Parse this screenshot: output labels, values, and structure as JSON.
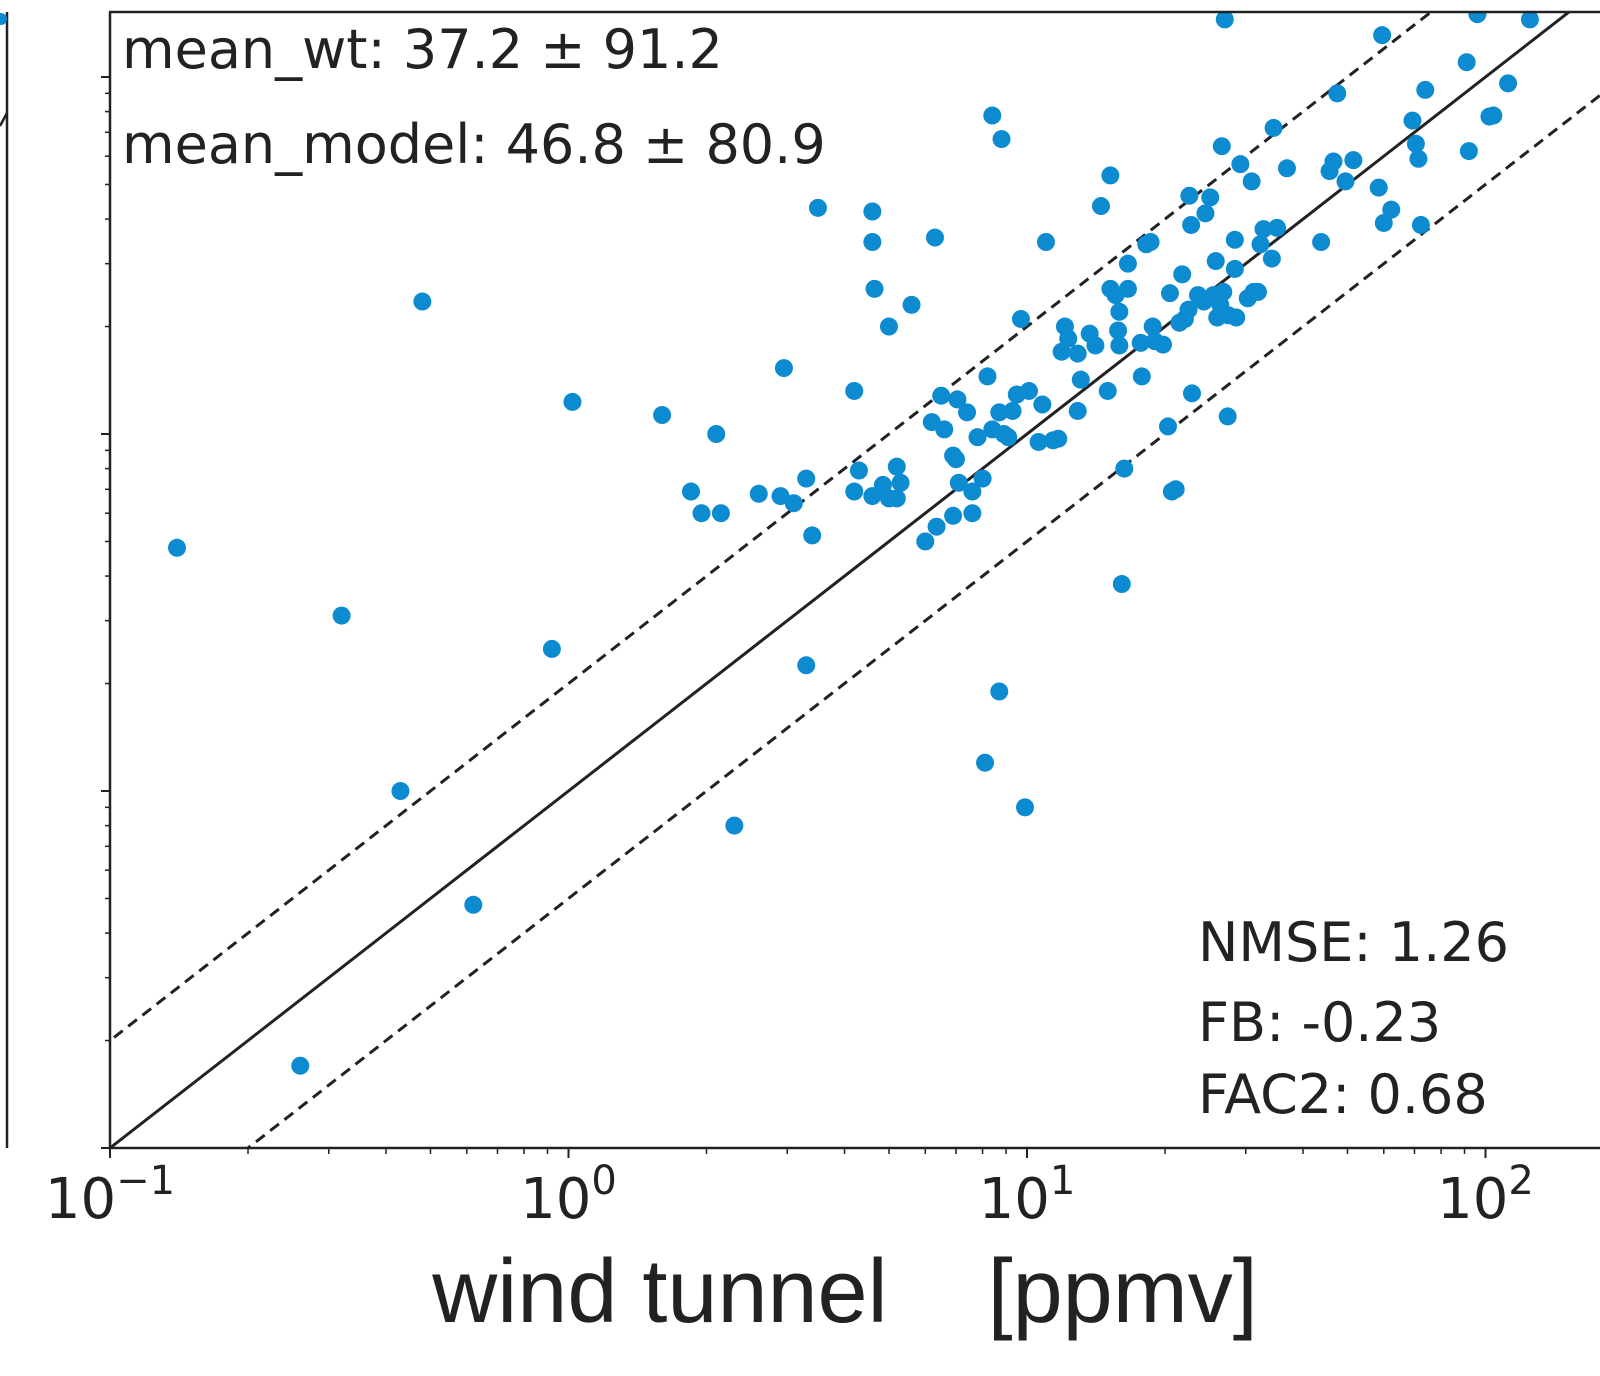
{
  "colors": {
    "point": "#0d8bd0",
    "axis": "#222222",
    "line": "#222222"
  },
  "chart_data": {
    "type": "scatter",
    "xscale": "log",
    "yscale": "log",
    "xlabel": "wind tunnel    [ppmv]",
    "x_tick_labels": [
      {
        "base": "10",
        "exp": "−1",
        "value": 0.1
      },
      {
        "base": "10",
        "exp": "0",
        "value": 1
      },
      {
        "base": "10",
        "exp": "1",
        "value": 10
      },
      {
        "base": "10",
        "exp": "2",
        "value": 100
      }
    ],
    "xlim": [
      0.1,
      150
    ],
    "ylim": [
      0.1,
      150
    ],
    "grid": false,
    "reference_lines": [
      {
        "kind": "solid",
        "relation": "y = x"
      },
      {
        "kind": "dashed",
        "relation": "y = 2x"
      },
      {
        "kind": "dashed",
        "relation": "y = 0.5x"
      }
    ],
    "annotations": {
      "mean_wt": "mean_wt: 37.2 ±  91.2",
      "mean_model": "mean_model: 46.8 ±  80.9",
      "nmse": "NMSE: 1.26",
      "fb": "FB: -0.23",
      "fac2": "FAC2: 0.68"
    },
    "points": [
      [
        0.14,
        4.8
      ],
      [
        0.26,
        0.17
      ],
      [
        0.32,
        3.1
      ],
      [
        0.43,
        1.0
      ],
      [
        0.48,
        23.5
      ],
      [
        0.62,
        0.48
      ],
      [
        0.92,
        2.5
      ],
      [
        1.02,
        12.3
      ],
      [
        1.6,
        11.3
      ],
      [
        1.85,
        6.9
      ],
      [
        1.95,
        6.0
      ],
      [
        2.1,
        10.0
      ],
      [
        2.15,
        6.0
      ],
      [
        2.3,
        0.8
      ],
      [
        2.6,
        6.8
      ],
      [
        2.9,
        6.7
      ],
      [
        2.95,
        15.3
      ],
      [
        3.1,
        6.4
      ],
      [
        3.3,
        7.5
      ],
      [
        3.3,
        2.25
      ],
      [
        3.4,
        5.2
      ],
      [
        3.5,
        43.0
      ],
      [
        4.2,
        13.2
      ],
      [
        4.3,
        7.9
      ],
      [
        4.2,
        6.9
      ],
      [
        4.6,
        34.5
      ],
      [
        4.6,
        42.0
      ],
      [
        4.65,
        25.5
      ],
      [
        4.6,
        6.7
      ],
      [
        4.85,
        7.2
      ],
      [
        5.0,
        6.6
      ],
      [
        5.0,
        20.0
      ],
      [
        5.2,
        6.6
      ],
      [
        5.3,
        7.3
      ],
      [
        5.2,
        8.1
      ],
      [
        5.6,
        23.0
      ],
      [
        6.0,
        5.0
      ],
      [
        6.2,
        10.8
      ],
      [
        6.3,
        35.5
      ],
      [
        6.35,
        5.5
      ],
      [
        6.5,
        12.8
      ],
      [
        6.6,
        10.3
      ],
      [
        6.9,
        5.9
      ],
      [
        6.9,
        8.7
      ],
      [
        7.0,
        8.5
      ],
      [
        7.05,
        12.5
      ],
      [
        7.1,
        7.3
      ],
      [
        7.4,
        11.5
      ],
      [
        7.6,
        6.9
      ],
      [
        7.6,
        6.0
      ],
      [
        7.8,
        9.8
      ],
      [
        8.0,
        7.5
      ],
      [
        8.1,
        1.2
      ],
      [
        8.2,
        14.5
      ],
      [
        8.4,
        10.3
      ],
      [
        8.4,
        78.0
      ],
      [
        8.7,
        11.5
      ],
      [
        8.7,
        1.9
      ],
      [
        8.8,
        67.0
      ],
      [
        8.9,
        10.0
      ],
      [
        9.1,
        9.8
      ],
      [
        9.3,
        11.6
      ],
      [
        9.5,
        12.9
      ],
      [
        9.7,
        21.0
      ],
      [
        9.9,
        0.9
      ],
      [
        10.1,
        13.2
      ],
      [
        10.6,
        9.5
      ],
      [
        10.8,
        12.1
      ],
      [
        11.0,
        34.5
      ],
      [
        11.4,
        9.6
      ],
      [
        11.7,
        9.7
      ],
      [
        11.9,
        17.0
      ],
      [
        12.1,
        20.0
      ],
      [
        12.3,
        18.5
      ],
      [
        12.9,
        11.6
      ],
      [
        12.9,
        16.8
      ],
      [
        13.1,
        14.2
      ],
      [
        13.7,
        19.1
      ],
      [
        14.1,
        17.7
      ],
      [
        14.5,
        43.5
      ],
      [
        15.0,
        13.2
      ],
      [
        15.2,
        25.5
      ],
      [
        15.2,
        53.0
      ],
      [
        15.6,
        24.5
      ],
      [
        15.8,
        19.5
      ],
      [
        15.9,
        17.7
      ],
      [
        15.9,
        22.0
      ],
      [
        16.1,
        3.8
      ],
      [
        16.3,
        8.0
      ],
      [
        16.6,
        25.5
      ],
      [
        16.6,
        30.0
      ],
      [
        17.7,
        18.0
      ],
      [
        17.8,
        14.5
      ],
      [
        18.2,
        34.0
      ],
      [
        18.6,
        34.5
      ],
      [
        18.8,
        20.0
      ],
      [
        19.0,
        18.2
      ],
      [
        19.8,
        17.8
      ],
      [
        20.3,
        10.5
      ],
      [
        20.5,
        24.8
      ],
      [
        20.7,
        6.9
      ],
      [
        21.1,
        7.0
      ],
      [
        21.5,
        20.5
      ],
      [
        21.8,
        28.0
      ],
      [
        22.1,
        21.0
      ],
      [
        22.5,
        22.3
      ],
      [
        22.6,
        46.5
      ],
      [
        22.8,
        38.5
      ],
      [
        22.9,
        13.0
      ],
      [
        23.6,
        24.5
      ],
      [
        24.3,
        23.5
      ],
      [
        24.5,
        41.5
      ],
      [
        25.1,
        46.0
      ],
      [
        25.5,
        24.5
      ],
      [
        25.8,
        30.5
      ],
      [
        26.0,
        21.2
      ],
      [
        26.4,
        23.0
      ],
      [
        26.6,
        64.0
      ],
      [
        26.8,
        25.0
      ],
      [
        27.4,
        11.2
      ],
      [
        27.5,
        21.5
      ],
      [
        28.4,
        29.0
      ],
      [
        28.4,
        35.0
      ],
      [
        28.6,
        21.2
      ],
      [
        29.2,
        57.0
      ],
      [
        30.3,
        24.0
      ],
      [
        30.9,
        51.0
      ],
      [
        31.2,
        25.0
      ],
      [
        31.9,
        25.0
      ],
      [
        32.3,
        34.0
      ],
      [
        32.8,
        37.5
      ],
      [
        34.2,
        31.0
      ],
      [
        34.5,
        72.0
      ],
      [
        35.1,
        37.8
      ],
      [
        36.9,
        55.5
      ],
      [
        43.8,
        34.5
      ],
      [
        45.7,
        54.5
      ],
      [
        46.6,
        58.0
      ],
      [
        47.5,
        90.0
      ],
      [
        49.5,
        51.0
      ],
      [
        51.5,
        58.5
      ],
      [
        58.5,
        49.0
      ],
      [
        59.5,
        131.0
      ],
      [
        60.0,
        39.0
      ],
      [
        62.3,
        42.5
      ],
      [
        69.3,
        75.5
      ],
      [
        70.5,
        65.0
      ],
      [
        71.4,
        59.0
      ],
      [
        72.3,
        38.5
      ],
      [
        73.9,
        92.0
      ],
      [
        91.0,
        110.0
      ],
      [
        92.0,
        62.0
      ],
      [
        96.0,
        150.0
      ],
      [
        102.0,
        77.5
      ],
      [
        104.0,
        78.0
      ],
      [
        112.0,
        96.0
      ],
      [
        125.0,
        145.0
      ],
      [
        27.0,
        145.0
      ]
    ]
  }
}
